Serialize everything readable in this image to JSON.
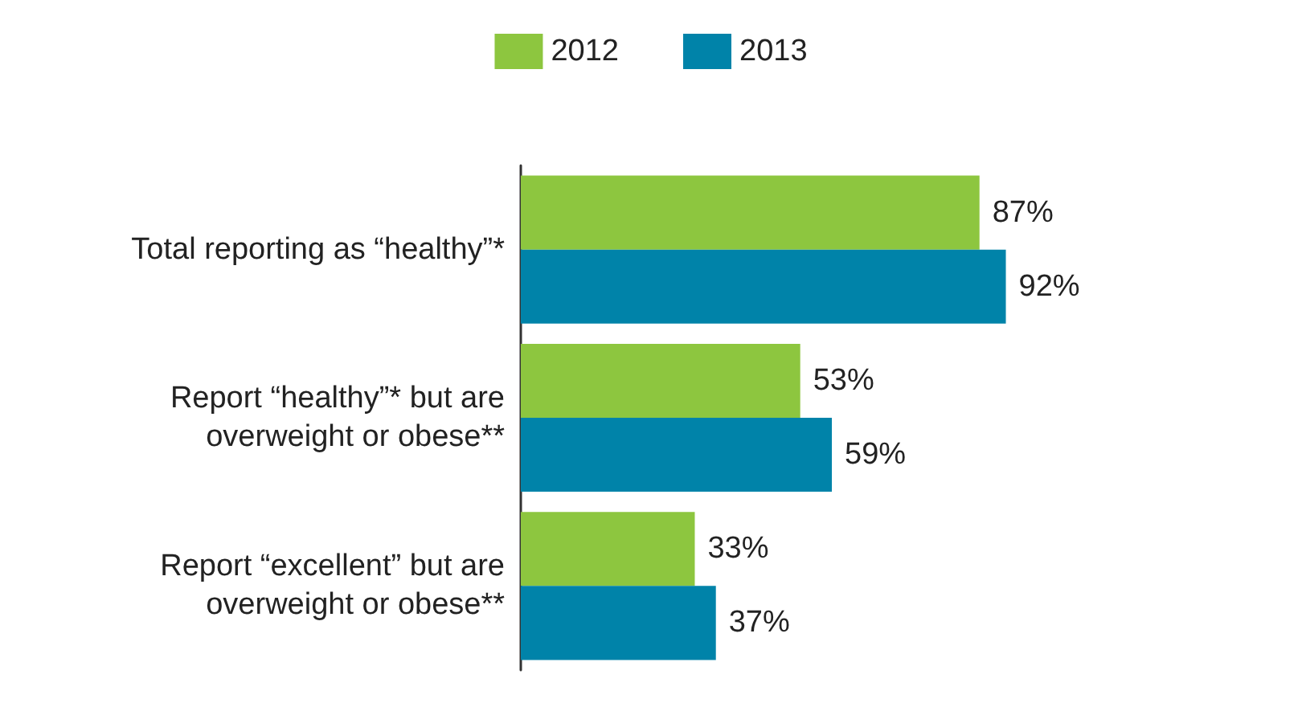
{
  "chart_data": {
    "type": "bar",
    "orientation": "horizontal",
    "categories": [
      "Total reporting as “healthy”*",
      "Report “healthy”* but are\noverweight or obese**",
      "Report “excellent” but are\noverweight or obese**"
    ],
    "series": [
      {
        "name": "2012",
        "color": "#8dc63f",
        "values": [
          87,
          53,
          33
        ],
        "value_labels": [
          "87%",
          "53%",
          "33%"
        ]
      },
      {
        "name": "2013",
        "color": "#0083a9",
        "values": [
          92,
          59,
          37
        ],
        "value_labels": [
          "92%",
          "59%",
          "37%"
        ]
      }
    ],
    "legend": "top",
    "grid": false,
    "tick_labels": "y"
  }
}
